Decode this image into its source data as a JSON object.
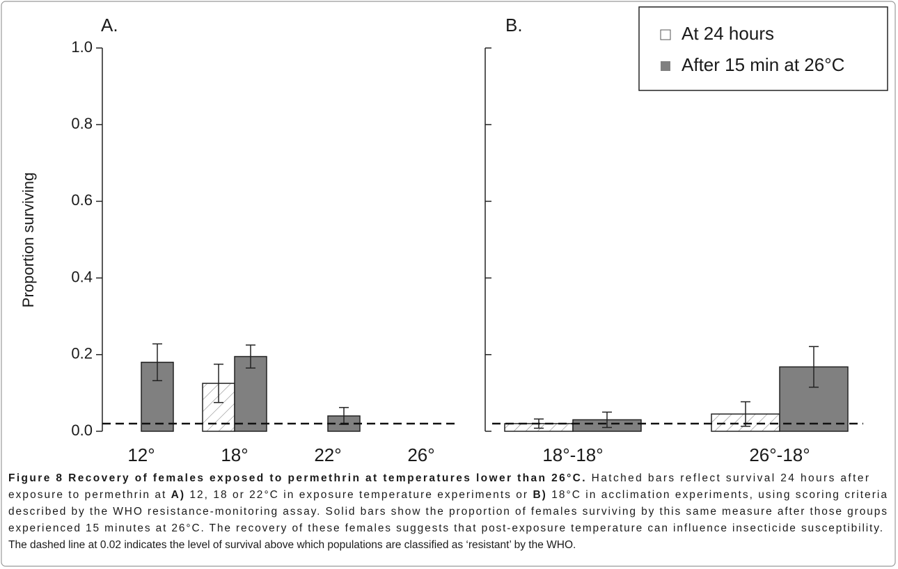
{
  "chart_data": [
    {
      "type": "bar",
      "title": "A.",
      "y_label": "Proportion surviving",
      "categories": [
        "12°",
        "18°",
        "22°",
        "26°"
      ],
      "series": [
        {
          "color": "#808080",
          "hatch": true,
          "values": [
            0,
            0.125,
            0,
            0
          ],
          "errors": [
            null,
            0.05,
            null,
            null
          ]
        },
        {
          "color": "#808080",
          "hatch": false,
          "values": [
            0.18,
            0.195,
            0.04,
            0
          ],
          "errors": [
            0.048,
            0.03,
            0.022,
            null
          ]
        }
      ],
      "ylim": [
        0,
        1
      ],
      "yticks": [
        {
          "value": 0,
          "label": "0.0"
        },
        0.2,
        0.4,
        0.6,
        0.8,
        {
          "value": 1,
          "label": "1.0"
        }
      ],
      "tick_labels": true,
      "ref_line": 0.02,
      "ref_style": "dashed"
    },
    {
      "type": "bar",
      "title": "B.",
      "categories": [
        "18°-18°",
        "26°-18°"
      ],
      "series": [
        {
          "name": "At 24 hours",
          "color": "#808080",
          "hatch": true,
          "values": [
            0.02,
            0.045
          ],
          "errors": [
            0.012,
            0.032
          ]
        },
        {
          "name": "After 15 min at 26°C",
          "color": "#808080",
          "hatch": false,
          "values": [
            0.03,
            0.168
          ],
          "errors": [
            0.02,
            0.053
          ]
        }
      ],
      "ylim": [
        0,
        1
      ],
      "yticks": [
        0,
        0.2,
        0.4,
        0.6,
        0.8,
        1
      ],
      "tick_labels": false,
      "ref_line": 0.02,
      "ref_style": "dashed",
      "legend": "upper right"
    }
  ],
  "caption": {
    "lines": [
      [
        {
          "text": "Figure 8 Recovery of females exposed to permethrin at temperatures lower than 26°C.",
          "bold": true
        },
        " Hatched bars reflect survival 24 hours after"
      ],
      [
        "exposure to permethrin at ",
        {
          "text": "A)",
          "bold": true
        },
        " 12, 18 or 22°C in exposure temperature experiments or ",
        {
          "text": "B)",
          "bold": true
        },
        " 18°C in acclimation experiments, using scoring criteria"
      ],
      [
        "described by the WHO resistance-monitoring assay. Solid bars show the proportion of females surviving by this same measure after those groups"
      ],
      [
        "experienced 15 minutes at 26°C. The recovery of these females suggests that post-exposure temperature can influence insecticide susceptibility."
      ],
      [
        "The dashed line at 0.02 indicates the level of survival above which populations are classified as ‘resistant’ by the WHO."
      ]
    ]
  }
}
